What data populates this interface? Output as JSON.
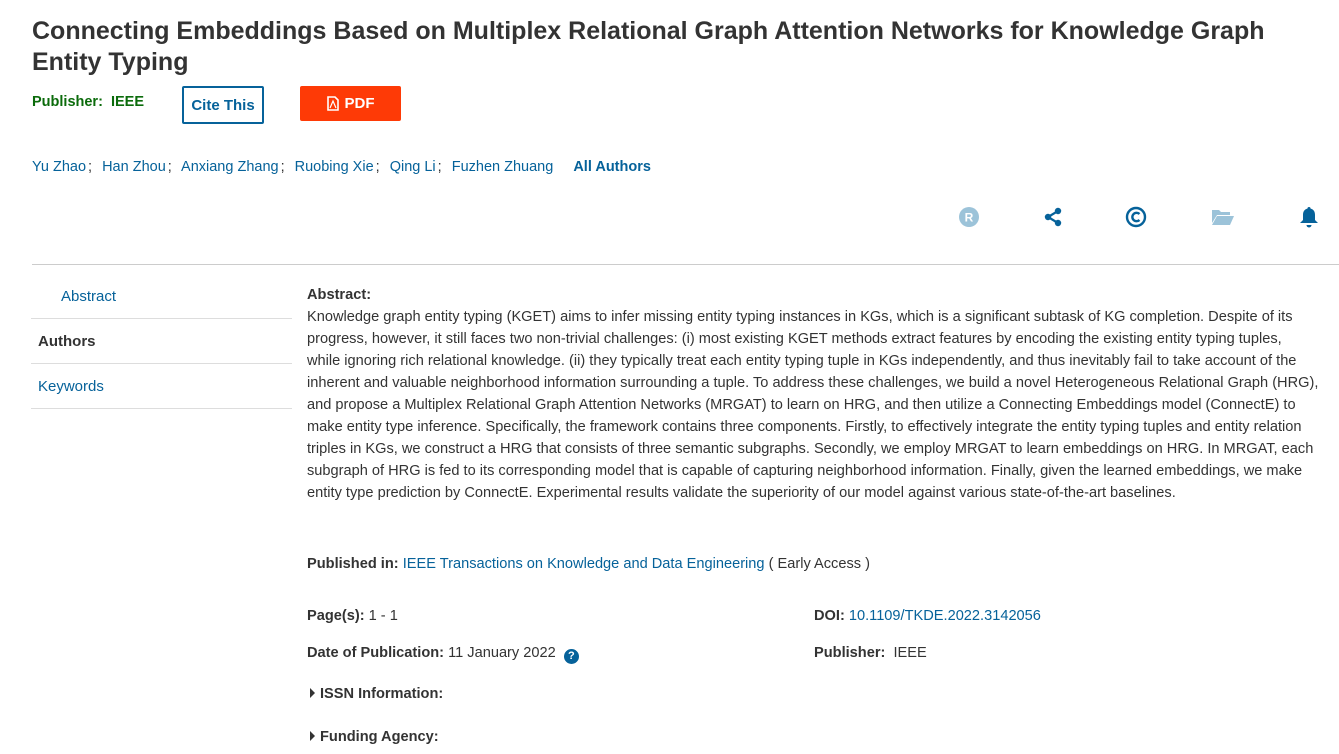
{
  "title": "Connecting Embeddings Based on Multiplex Relational Graph Attention Networks for Knowledge Graph Entity Typing",
  "publisher_label": "Publisher:",
  "publisher": "IEEE",
  "cite_label": "Cite This",
  "pdf_label": "PDF",
  "authors": [
    "Yu Zhao",
    "Han Zhou",
    "Anxiang Zhang",
    "Ruobing Xie",
    "Qing Li",
    "Fuzhen Zhuang"
  ],
  "separator": ";",
  "all_authors": "All Authors",
  "action_icons": [
    "rights-icon",
    "share-icon",
    "copyright-icon",
    "folder-icon",
    "alert-bell-icon"
  ],
  "nav": [
    "Abstract",
    "Authors",
    "Keywords"
  ],
  "abstract_label": "Abstract:",
  "abstract": "Knowledge graph entity typing (KGET) aims to infer missing entity typing instances in KGs, which is a significant subtask of KG completion. Despite of its progress, however, it still faces two non-trivial challenges: (i) most existing KGET methods extract features by encoding the existing entity typing tuples, while ignoring rich relational knowledge. (ii) they typically treat each entity typing tuple in KGs independently, and thus inevitably fail to take account of the inherent and valuable neighborhood information surrounding a tuple. To address these challenges, we build a novel Heterogeneous Relational Graph (HRG), and propose a Multiplex Relational Graph Attention Networks (MRGAT) to learn on HRG, and then utilize a Connecting Embeddings model (ConnectE) to make entity type inference. Specifically, the framework contains three components. Firstly, to effectively integrate the entity typing tuples and entity relation triples in KGs, we construct a HRG that consists of three semantic subgraphs. Secondly, we employ MRGAT to learn embeddings on HRG. In MRGAT, each subgraph of HRG is fed to its corresponding model that is capable of capturing neighborhood information. Finally, given the learned embeddings, we make entity type prediction by ConnectE. Experimental results validate the superiority of our model against various state-of-the-art baselines.",
  "published_in_label": "Published in:",
  "published_in": "IEEE Transactions on Knowledge and Data Engineering",
  "published_in_suffix": "( Early Access )",
  "pages_label": "Page(s):",
  "pages": "1 - 1",
  "doi_label": "DOI:",
  "doi": "10.1109/TKDE.2022.3142056",
  "date_label": "Date of Publication:",
  "date": "11 January 2022",
  "publisher2_label": "Publisher:",
  "publisher2": "IEEE",
  "issn_label": "ISSN Information:",
  "funding_label": "Funding Agency:",
  "colors": {
    "link": "#06629a",
    "pdf": "#fe3a06",
    "publisher": "#0b6b0b"
  }
}
